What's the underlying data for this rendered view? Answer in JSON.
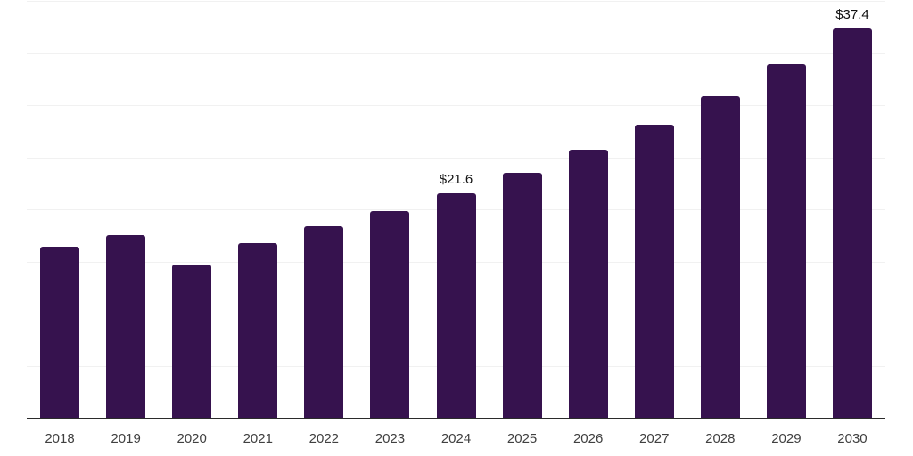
{
  "chart_data": {
    "type": "bar",
    "title": "",
    "xlabel": "",
    "ylabel": "",
    "categories": [
      "2018",
      "2019",
      "2020",
      "2021",
      "2022",
      "2023",
      "2024",
      "2025",
      "2026",
      "2027",
      "2028",
      "2029",
      "2030"
    ],
    "values": [
      16.5,
      17.6,
      14.8,
      16.8,
      18.5,
      19.9,
      21.6,
      23.6,
      25.8,
      28.2,
      30.9,
      34.0,
      37.4
    ],
    "data_labels": [
      "",
      "",
      "",
      "",
      "",
      "",
      "$21.6",
      "",
      "",
      "",
      "",
      "",
      "$37.4"
    ],
    "ylim": [
      0,
      40
    ],
    "grid_step": 5,
    "grid": true,
    "legend": false,
    "y_tick_labels_visible": false,
    "colors": {
      "bar": "#36124e",
      "gridline": "#f1f1f1",
      "axis_line": "#2b2b2b",
      "tick_label": "#404040",
      "data_label": "#111111",
      "background": "#ffffff"
    }
  }
}
